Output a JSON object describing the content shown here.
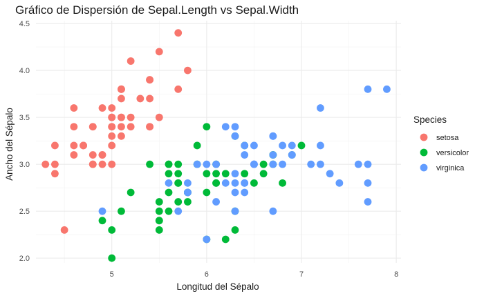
{
  "chart_data": {
    "type": "scatter",
    "title": "Gráfico de Dispersión de Sepal.Length vs Sepal.Width",
    "xlabel": "Longitud del Sépalo",
    "ylabel": "Ancho del Sépalo",
    "xlim": [
      4.2,
      8.05
    ],
    "ylim": [
      1.95,
      4.53
    ],
    "x_ticks": [
      5,
      6,
      7,
      8
    ],
    "x_minor_ticks": [
      4.5,
      5.5,
      6.5,
      7.5
    ],
    "y_ticks": [
      2.0,
      2.5,
      3.0,
      3.5,
      4.0,
      4.5
    ],
    "y_tick_labels": [
      "2.0",
      "2.5",
      "3.0",
      "3.5",
      "4.0",
      "4.5"
    ],
    "y_minor_ticks": [
      2.25,
      2.75,
      3.25,
      3.75,
      4.25
    ],
    "grid": true,
    "legend": {
      "title": "Species",
      "position": "right"
    },
    "series": [
      {
        "name": "setosa",
        "color": "#F8766D",
        "points": [
          [
            5.1,
            3.5
          ],
          [
            4.9,
            3.0
          ],
          [
            4.7,
            3.2
          ],
          [
            4.6,
            3.1
          ],
          [
            5.0,
            3.6
          ],
          [
            5.4,
            3.9
          ],
          [
            4.6,
            3.4
          ],
          [
            5.0,
            3.4
          ],
          [
            4.4,
            2.9
          ],
          [
            4.9,
            3.1
          ],
          [
            5.4,
            3.7
          ],
          [
            4.8,
            3.4
          ],
          [
            4.8,
            3.0
          ],
          [
            4.3,
            3.0
          ],
          [
            5.8,
            4.0
          ],
          [
            5.7,
            4.4
          ],
          [
            5.4,
            3.9
          ],
          [
            5.1,
            3.5
          ],
          [
            5.7,
            3.8
          ],
          [
            5.1,
            3.8
          ],
          [
            5.4,
            3.4
          ],
          [
            5.1,
            3.7
          ],
          [
            4.6,
            3.6
          ],
          [
            5.1,
            3.3
          ],
          [
            4.8,
            3.4
          ],
          [
            5.0,
            3.0
          ],
          [
            5.0,
            3.4
          ],
          [
            5.2,
            3.5
          ],
          [
            5.2,
            3.4
          ],
          [
            4.7,
            3.2
          ],
          [
            4.8,
            3.1
          ],
          [
            5.4,
            3.4
          ],
          [
            5.2,
            4.1
          ],
          [
            5.5,
            4.2
          ],
          [
            4.9,
            3.1
          ],
          [
            5.0,
            3.2
          ],
          [
            5.5,
            3.5
          ],
          [
            4.9,
            3.6
          ],
          [
            4.4,
            3.0
          ],
          [
            5.1,
            3.4
          ],
          [
            5.0,
            3.5
          ],
          [
            4.5,
            2.3
          ],
          [
            4.4,
            3.2
          ],
          [
            5.0,
            3.5
          ],
          [
            5.1,
            3.8
          ],
          [
            4.8,
            3.0
          ],
          [
            5.1,
            3.8
          ],
          [
            4.6,
            3.2
          ],
          [
            5.3,
            3.7
          ],
          [
            5.0,
            3.3
          ]
        ]
      },
      {
        "name": "versicolor",
        "color": "#00BA38",
        "points": [
          [
            7.0,
            3.2
          ],
          [
            6.4,
            3.2
          ],
          [
            6.9,
            3.1
          ],
          [
            5.5,
            2.3
          ],
          [
            6.5,
            2.8
          ],
          [
            5.7,
            2.8
          ],
          [
            6.3,
            3.3
          ],
          [
            4.9,
            2.4
          ],
          [
            6.6,
            2.9
          ],
          [
            5.2,
            2.7
          ],
          [
            5.0,
            2.0
          ],
          [
            5.9,
            3.0
          ],
          [
            6.0,
            2.2
          ],
          [
            6.1,
            2.9
          ],
          [
            5.6,
            2.9
          ],
          [
            6.7,
            3.1
          ],
          [
            5.6,
            3.0
          ],
          [
            5.8,
            2.7
          ],
          [
            6.2,
            2.2
          ],
          [
            5.6,
            2.5
          ],
          [
            5.9,
            3.2
          ],
          [
            6.1,
            2.8
          ],
          [
            6.3,
            2.5
          ],
          [
            6.1,
            2.8
          ],
          [
            6.4,
            2.9
          ],
          [
            6.6,
            3.0
          ],
          [
            6.8,
            2.8
          ],
          [
            6.7,
            3.0
          ],
          [
            6.0,
            2.9
          ],
          [
            5.7,
            2.6
          ],
          [
            5.5,
            2.4
          ],
          [
            5.5,
            2.4
          ],
          [
            5.8,
            2.7
          ],
          [
            6.0,
            2.7
          ],
          [
            5.4,
            3.0
          ],
          [
            6.0,
            3.4
          ],
          [
            6.7,
            3.1
          ],
          [
            6.3,
            2.3
          ],
          [
            5.6,
            3.0
          ],
          [
            5.5,
            2.5
          ],
          [
            5.5,
            2.6
          ],
          [
            6.1,
            3.0
          ],
          [
            5.8,
            2.6
          ],
          [
            5.0,
            2.3
          ],
          [
            5.6,
            2.7
          ],
          [
            5.7,
            3.0
          ],
          [
            5.7,
            2.9
          ],
          [
            6.2,
            2.9
          ],
          [
            5.1,
            2.5
          ],
          [
            5.7,
            2.8
          ]
        ]
      },
      {
        "name": "virginica",
        "color": "#619CFF",
        "points": [
          [
            6.3,
            3.3
          ],
          [
            5.8,
            2.7
          ],
          [
            7.1,
            3.0
          ],
          [
            6.3,
            2.9
          ],
          [
            6.5,
            3.0
          ],
          [
            7.6,
            3.0
          ],
          [
            4.9,
            2.5
          ],
          [
            7.3,
            2.9
          ],
          [
            6.7,
            2.5
          ],
          [
            7.2,
            3.6
          ],
          [
            6.5,
            3.2
          ],
          [
            6.4,
            2.7
          ],
          [
            6.8,
            3.0
          ],
          [
            5.7,
            2.5
          ],
          [
            5.8,
            2.8
          ],
          [
            6.4,
            3.2
          ],
          [
            6.5,
            3.0
          ],
          [
            7.7,
            3.8
          ],
          [
            7.7,
            2.6
          ],
          [
            6.0,
            2.2
          ],
          [
            6.9,
            3.2
          ],
          [
            5.6,
            2.8
          ],
          [
            7.7,
            2.8
          ],
          [
            6.3,
            2.7
          ],
          [
            6.7,
            3.3
          ],
          [
            7.2,
            3.2
          ],
          [
            6.2,
            2.8
          ],
          [
            6.1,
            3.0
          ],
          [
            6.4,
            2.8
          ],
          [
            7.2,
            3.0
          ],
          [
            7.4,
            2.8
          ],
          [
            7.9,
            3.8
          ],
          [
            6.4,
            2.8
          ],
          [
            6.3,
            2.8
          ],
          [
            6.1,
            2.6
          ],
          [
            7.7,
            3.0
          ],
          [
            6.3,
            3.4
          ],
          [
            6.4,
            3.1
          ],
          [
            6.0,
            3.0
          ],
          [
            6.9,
            3.1
          ],
          [
            6.7,
            3.1
          ],
          [
            6.9,
            3.1
          ],
          [
            5.8,
            2.7
          ],
          [
            6.8,
            3.2
          ],
          [
            6.7,
            3.3
          ],
          [
            6.7,
            3.0
          ],
          [
            6.3,
            2.5
          ],
          [
            6.5,
            3.0
          ],
          [
            6.2,
            3.4
          ],
          [
            5.9,
            3.0
          ]
        ]
      }
    ]
  }
}
